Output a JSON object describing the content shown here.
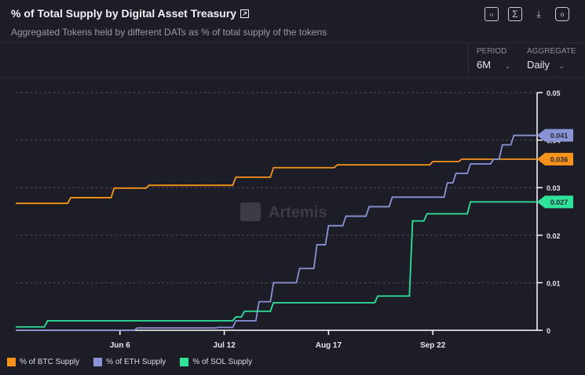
{
  "header": {
    "title": "% of Total Supply by Digital Asset Treasury",
    "subtitle": "Aggregated Tokens held by different DATs as % of total supply of the tokens",
    "icons": [
      "external-link-icon",
      "embed-icon",
      "sigma-icon",
      "download-icon",
      "camera-icon"
    ]
  },
  "controls": {
    "period_label": "PERIOD",
    "period_value": "6M",
    "aggregate_label": "AGGREGATE",
    "aggregate_value": "Daily"
  },
  "watermark": "Artemis",
  "chart_data": {
    "type": "line",
    "title": "",
    "xlabel": "",
    "ylabel": "",
    "x_ticks": [
      "Jun 6",
      "Jul 12",
      "Aug 17",
      "Sep 22"
    ],
    "x_range": [
      "05-01",
      "10-28"
    ],
    "ylim": [
      0,
      0.05
    ],
    "y_ticks": [
      "0",
      "0.01",
      "0.02",
      "0.03",
      "0.04",
      "0.05"
    ],
    "grid": true,
    "legend": "bottom-left",
    "step": true,
    "series": [
      {
        "name": "% of BTC Supply",
        "color": "#f7931a",
        "last_label": "0.036",
        "points": [
          [
            "05-01",
            0.0267
          ],
          [
            "05-20",
            0.0279
          ],
          [
            "06-04",
            0.0299
          ],
          [
            "06-16",
            0.0305
          ],
          [
            "07-16",
            0.0322
          ],
          [
            "07-29",
            0.0342
          ],
          [
            "08-20",
            0.0348
          ],
          [
            "09-22",
            0.0355
          ],
          [
            "10-02",
            0.036
          ],
          [
            "10-28",
            0.036
          ]
        ]
      },
      {
        "name": "% of ETH Supply",
        "color": "#8a93d6",
        "last_label": "0.041",
        "points": [
          [
            "05-01",
            0.0
          ],
          [
            "06-12",
            0.0005
          ],
          [
            "07-10",
            0.0006
          ],
          [
            "07-16",
            0.002
          ],
          [
            "07-24",
            0.006
          ],
          [
            "07-29",
            0.01
          ],
          [
            "08-07",
            0.013
          ],
          [
            "08-13",
            0.018
          ],
          [
            "08-17",
            0.022
          ],
          [
            "08-23",
            0.024
          ],
          [
            "08-31",
            0.026
          ],
          [
            "09-08",
            0.028
          ],
          [
            "09-19",
            0.028
          ],
          [
            "09-27",
            0.031
          ],
          [
            "09-30",
            0.033
          ],
          [
            "10-05",
            0.035
          ],
          [
            "10-13",
            0.036
          ],
          [
            "10-16",
            0.039
          ],
          [
            "10-20",
            0.041
          ],
          [
            "10-28",
            0.041
          ]
        ]
      },
      {
        "name": "% of SOL Supply",
        "color": "#2ee39a",
        "last_label": "0.027",
        "points": [
          [
            "05-01",
            0.0007
          ],
          [
            "05-12",
            0.002
          ],
          [
            "07-16",
            0.0028
          ],
          [
            "07-19",
            0.004
          ],
          [
            "07-29",
            0.0058
          ],
          [
            "09-03",
            0.0072
          ],
          [
            "09-15",
            0.023
          ],
          [
            "09-20",
            0.0245
          ],
          [
            "10-05",
            0.027
          ],
          [
            "10-28",
            0.027
          ]
        ]
      }
    ]
  }
}
